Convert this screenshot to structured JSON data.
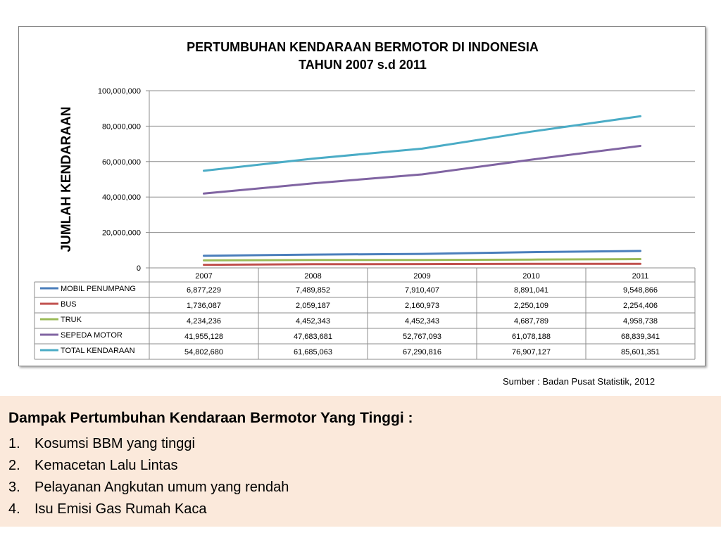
{
  "chart_data": {
    "type": "line",
    "title": [
      "PERTUMBUHAN KENDARAAN BERMOTOR DI INDONESIA",
      "TAHUN 2007 s.d 2011"
    ],
    "ylabel": "JUMLAH KENDARAAN",
    "xlabel": "",
    "ylim": [
      0,
      100000000
    ],
    "yticks": [
      0,
      20000000,
      40000000,
      60000000,
      80000000,
      100000000
    ],
    "ytick_labels": [
      "0",
      "20,000,000",
      "40,000,000",
      "60,000,000",
      "80,000,000",
      "100,000,000"
    ],
    "categories": [
      "2007",
      "2008",
      "2009",
      "2010",
      "2011"
    ],
    "grid": true,
    "legend": "data-table-below",
    "series": [
      {
        "name": "MOBIL PENUMPANG",
        "color": "#4a7ebb",
        "values": [
          6877229,
          7489852,
          7910407,
          8891041,
          9548866
        ],
        "labels": [
          "6,877,229",
          "7,489,852",
          "7,910,407",
          "8,891,041",
          "9,548,866"
        ]
      },
      {
        "name": "BUS",
        "color": "#c0504d",
        "values": [
          1736087,
          2059187,
          2160973,
          2250109,
          2254406
        ],
        "labels": [
          "1,736,087",
          "2,059,187",
          "2,160,973",
          "2,250,109",
          "2,254,406"
        ]
      },
      {
        "name": "TRUK",
        "color": "#9bbb59",
        "values": [
          4234236,
          4452343,
          4452343,
          4687789,
          4958738
        ],
        "labels": [
          "4,234,236",
          "4,452,343",
          "4,452,343",
          "4,687,789",
          "4,958,738"
        ]
      },
      {
        "name": "SEPEDA MOTOR",
        "color": "#8064a2",
        "values": [
          41955128,
          47683681,
          52767093,
          61078188,
          68839341
        ],
        "labels": [
          "41,955,128",
          "47,683,681",
          "52,767,093",
          "61,078,188",
          "68,839,341"
        ]
      },
      {
        "name": "TOTAL KENDARAAN",
        "color": "#4bacc6",
        "values": [
          54802680,
          61685063,
          67290816,
          76907127,
          85601351
        ],
        "labels": [
          "54,802,680",
          "61,685,063",
          "67,290,816",
          "76,907,127",
          "85,601,351"
        ]
      }
    ]
  },
  "source": "Sumber : Badan Pusat Statistik, 2012",
  "panel": {
    "heading": "Dampak Pertumbuhan Kendaraan Bermotor Yang Tinggi :",
    "items": [
      {
        "num": "1.",
        "text": "Kosumsi BBM yang tinggi"
      },
      {
        "num": "2.",
        "text": "Kemacetan Lalu Lintas"
      },
      {
        "num": "3.",
        "text": "Pelayanan Angkutan umum yang rendah"
      },
      {
        "num": "4.",
        "text": "Isu  Emisi Gas Rumah Kaca"
      }
    ]
  }
}
